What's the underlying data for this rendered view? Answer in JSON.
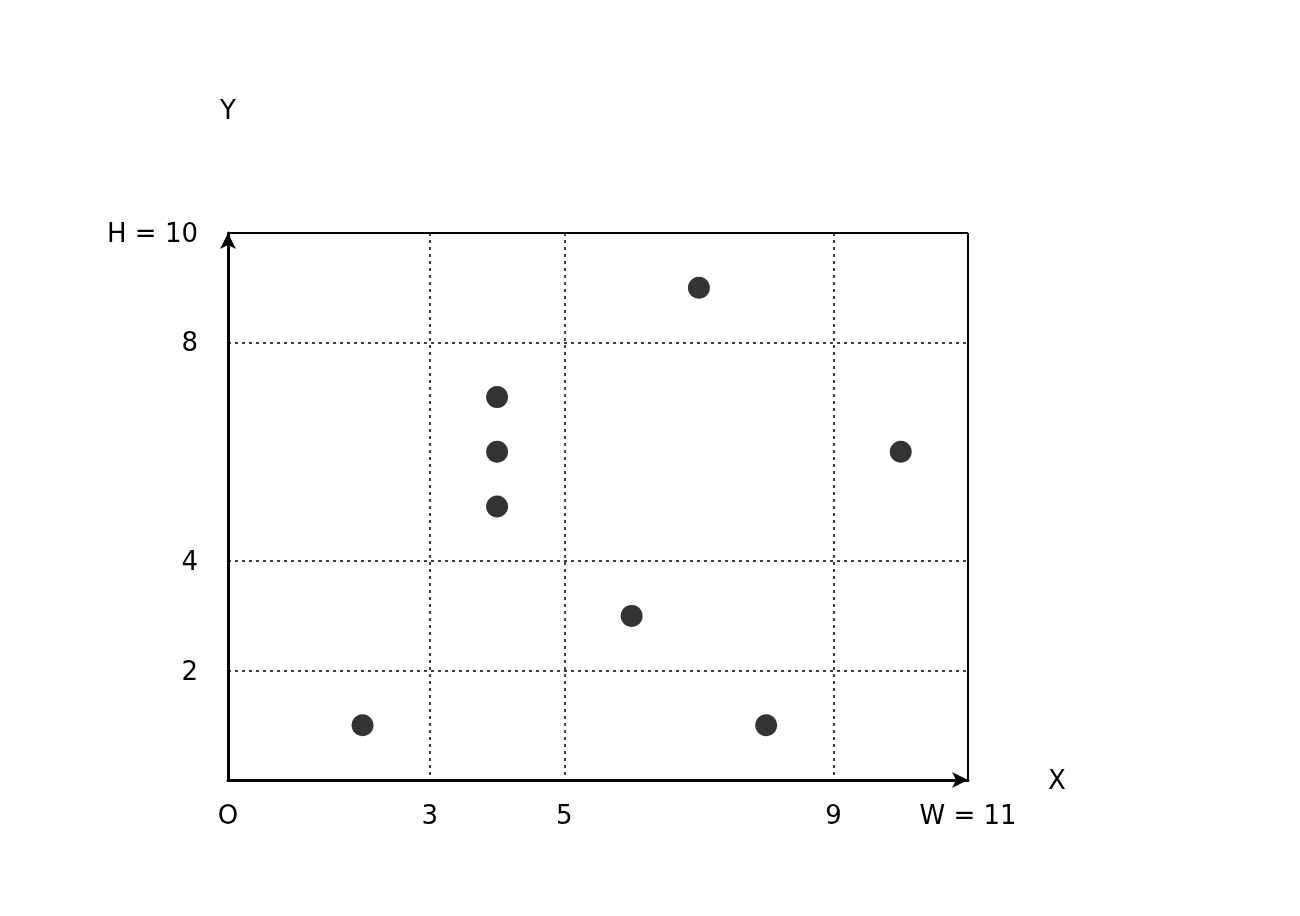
{
  "chart_data": {
    "type": "scatter",
    "xlabel": "X",
    "ylabel": "Y",
    "x": [
      2,
      4,
      4,
      4,
      6,
      7,
      8,
      10
    ],
    "values": [
      1,
      7,
      6,
      5,
      3,
      9,
      1,
      6
    ],
    "color": "#000000",
    "marker": "circle",
    "xlim": [
      0,
      11
    ],
    "ylim": [
      0,
      10
    ],
    "xticks": [
      {
        "value": 0,
        "label": "O"
      },
      3,
      5,
      9,
      {
        "value": 11,
        "label": "W = 11"
      }
    ],
    "yticks": [
      2,
      4,
      8,
      {
        "value": 10,
        "label": "H = 10"
      }
    ],
    "grid": true,
    "line_style": "dotted",
    "ref_lines": [
      {
        "axis": "x",
        "value": 11,
        "line_style": "solid"
      },
      {
        "axis": "y",
        "value": 10,
        "line_style": "solid"
      }
    ]
  }
}
